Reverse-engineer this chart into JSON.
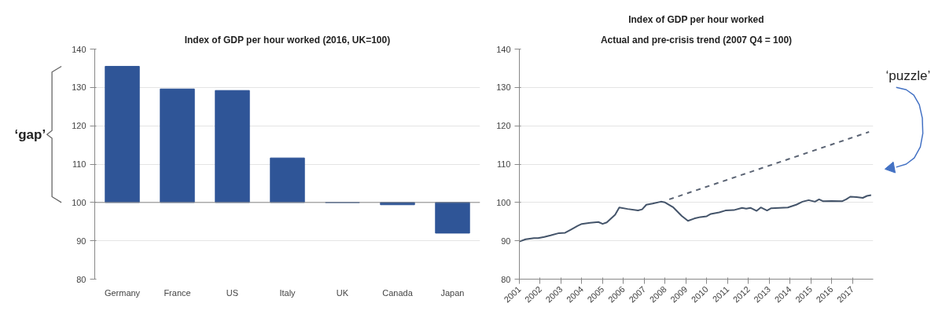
{
  "chart_data": [
    {
      "type": "bar",
      "title": "Index of GDP per hour worked (2016, UK=100)",
      "categories": [
        "Germany",
        "France",
        "US",
        "Italy",
        "UK",
        "Canada",
        "Japan"
      ],
      "base": [
        100,
        100,
        100,
        100,
        100,
        100,
        100
      ],
      "values": [
        35.5,
        29.6,
        29.2,
        11.6,
        0,
        -0.6,
        -8.0
      ],
      "color": "#2f5597",
      "ylim": [
        80,
        140
      ],
      "yticks": [
        80,
        90,
        100,
        110,
        120,
        130,
        140
      ],
      "grid": "y",
      "annotations": [
        "‘gap’"
      ],
      "ref_lines": [
        {
          "axis": "y",
          "value": 100,
          "color": "#888888"
        }
      ]
    },
    {
      "type": "line",
      "title": "Index of GDP per hour worked",
      "subtitle": "Actual and pre-crisis trend (2007 Q4 = 100)",
      "xlim": [
        2001,
        2018
      ],
      "xticks": [
        2001,
        2002,
        2003,
        2004,
        2005,
        2006,
        2007,
        2008,
        2009,
        2010,
        2011,
        2012,
        2013,
        2014,
        2015,
        2016,
        2017
      ],
      "ylim": [
        80,
        140
      ],
      "yticks": [
        80,
        90,
        100,
        110,
        120,
        130,
        140
      ],
      "grid": "y",
      "annotations": [
        "‘puzzle’"
      ],
      "series": [
        {
          "color": "#44546a",
          "line_style": "solid",
          "x": [
            2001.0,
            2001.3,
            2001.7,
            2001.9,
            2002.2,
            2002.5,
            2002.9,
            2003.2,
            2003.5,
            2003.8,
            2004.0,
            2004.4,
            2004.8,
            2005.0,
            2005.2,
            2005.6,
            2005.8,
            2006.2,
            2006.7,
            2006.9,
            2007.1,
            2007.4,
            2007.8,
            2008.0,
            2008.4,
            2008.8,
            2009.1,
            2009.4,
            2009.7,
            2010.0,
            2010.2,
            2010.6,
            2010.9,
            2011.3,
            2011.7,
            2011.9,
            2012.1,
            2012.4,
            2012.6,
            2012.9,
            2013.1,
            2013.5,
            2013.9,
            2014.3,
            2014.6,
            2014.9,
            2015.2,
            2015.4,
            2015.6,
            2016.0,
            2016.5,
            2016.7,
            2016.9,
            2017.2,
            2017.5,
            2017.7,
            2017.9
          ],
          "values": [
            89.8,
            90.4,
            90.7,
            90.7,
            91.0,
            91.4,
            92.0,
            92.1,
            93.0,
            93.9,
            94.4,
            94.7,
            94.9,
            94.4,
            94.8,
            96.8,
            98.7,
            98.3,
            97.9,
            98.2,
            99.4,
            99.7,
            100.2,
            100.0,
            98.7,
            96.5,
            95.2,
            95.8,
            96.2,
            96.4,
            97.0,
            97.4,
            97.9,
            98.0,
            98.6,
            98.4,
            98.6,
            97.8,
            98.7,
            97.9,
            98.5,
            98.6,
            98.7,
            99.4,
            100.2,
            100.6,
            100.2,
            100.8,
            100.3,
            100.4,
            100.3,
            100.8,
            101.5,
            101.4,
            101.2,
            101.7,
            101.9
          ]
        },
        {
          "color": "#5b6474",
          "line_style": "dashed",
          "x": [
            2008.2,
            2017.8
          ],
          "values": [
            100.8,
            118.4
          ]
        }
      ]
    }
  ]
}
